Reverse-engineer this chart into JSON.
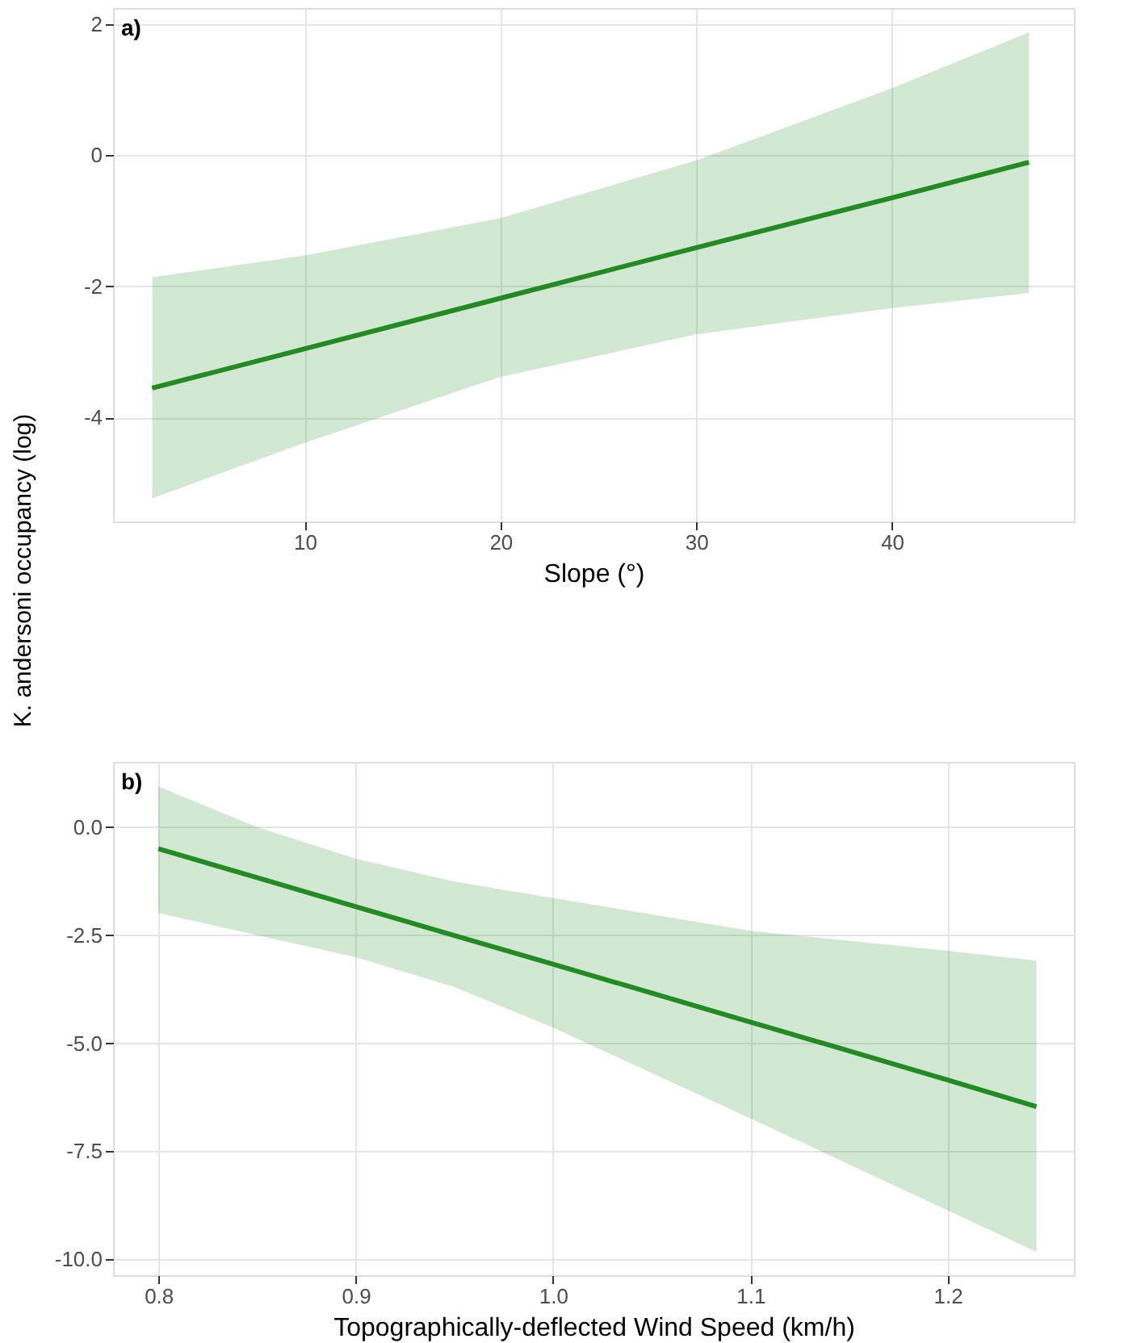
{
  "chart_data": [
    {
      "type": "line",
      "ylabel": "K. andersoni occupancy (log)",
      "xlabel": "Slope (°)",
      "annotations": [
        "a)"
      ],
      "xlim": [
        0.2,
        49.3
      ],
      "xticks": [
        10,
        20,
        30,
        40
      ],
      "ylim": [
        -5.58,
        2.24
      ],
      "yticks": [
        -4,
        -2,
        0,
        2
      ],
      "grid": true,
      "series": [
        {
          "color": "#228b22",
          "x": [
            2.2,
            10,
            20,
            30,
            40,
            47
          ],
          "values": [
            -3.55,
            -2.95,
            -2.18,
            -1.41,
            -0.65,
            -0.11
          ],
          "lower": [
            -5.23,
            -4.38,
            -3.38,
            -2.73,
            -2.33,
            -2.1
          ],
          "upper": [
            -1.86,
            -1.53,
            -0.96,
            -0.08,
            1.02,
            1.87
          ]
        }
      ]
    },
    {
      "type": "line",
      "xlabel": "Topographically-deflected Wind Speed (km/h)",
      "annotations": [
        "b)"
      ],
      "xlim": [
        0.777,
        1.264
      ],
      "xticks": [
        0.8,
        0.9,
        {
          "value": 1.0,
          "label": "1.0"
        },
        1.1,
        1.2
      ],
      "ylim": [
        -10.37,
        1.51
      ],
      "yticks": [
        {
          "value": 0,
          "label": "0.0"
        },
        -2.5,
        {
          "value": -5,
          "label": "-5.0"
        },
        -7.5,
        {
          "value": -10,
          "label": "-10.0"
        }
      ],
      "grid": true,
      "series": [
        {
          "color": "#228b22",
          "x": [
            0.8,
            0.85,
            0.9,
            0.95,
            1.0,
            1.1,
            1.2,
            1.245
          ],
          "values": [
            -0.5,
            -1.17,
            -1.84,
            -2.51,
            -3.17,
            -4.51,
            -5.85,
            -6.47
          ],
          "lower": [
            -1.99,
            -2.5,
            -3.01,
            -3.7,
            -4.64,
            -6.74,
            -8.87,
            -9.83
          ],
          "upper": [
            0.94,
            0,
            -0.73,
            -1.26,
            -1.64,
            -2.4,
            -2.86,
            -3.09
          ]
        }
      ]
    }
  ]
}
